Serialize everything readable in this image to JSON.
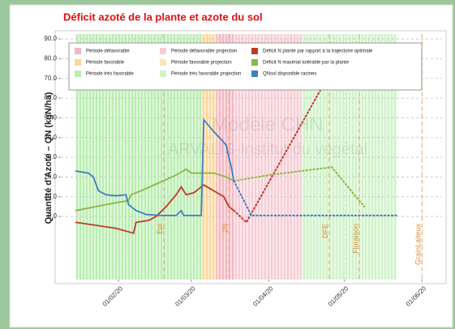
{
  "chart_data": {
    "type": "line",
    "title": "Déficit azoté de la plante et azote du sol",
    "ylabel": "Quantité d'Azote – QN (kgN/ha)",
    "watermark": [
      "Modèle CHN",
      "ARVALIS-Institut du végétal"
    ],
    "xlim": [
      "2020-01-09",
      "2020-06-09"
    ],
    "xticks": [
      {
        "value": "2020-02-01",
        "label": "01/02/20"
      },
      {
        "value": "2020-03-01",
        "label": "01/03/20"
      },
      {
        "value": "2020-04-01",
        "label": "01/04/20"
      },
      {
        "value": "2020-05-01",
        "label": "01/05/20"
      },
      {
        "value": "2020-06-01",
        "label": "01/06/20"
      }
    ],
    "ylim": [
      -32,
      92.5
    ],
    "yticks": [
      {
        "value": 0,
        "label": "0.0"
      },
      {
        "value": 10,
        "label": "10.0"
      },
      {
        "value": 20,
        "label": "20.0"
      },
      {
        "value": 30,
        "label": "30.0"
      },
      {
        "value": 40,
        "label": "40.0"
      },
      {
        "value": 50,
        "label": "50.0"
      },
      {
        "value": 60,
        "label": "60.0"
      },
      {
        "value": 70,
        "label": "70.0"
      },
      {
        "value": 80,
        "label": "80.0"
      },
      {
        "value": 90,
        "label": "90.0"
      }
    ],
    "grid": true,
    "band_types": [
      {
        "name": "Période défavorable",
        "color": "#f4b6c2"
      },
      {
        "name": "Période favorable",
        "color": "#fbd79a"
      },
      {
        "name": "Période très favorable",
        "color": "#b9eeb0"
      },
      {
        "name": "Période défavorable projection",
        "color": "#f7cdd5"
      },
      {
        "name": "Période favorable projection",
        "color": "#fce4b9"
      },
      {
        "name": "Période très favorable projection",
        "color": "#cff3c8"
      }
    ],
    "bands": [
      {
        "type": 2,
        "start": "2020-01-15",
        "end": "2020-03-05"
      },
      {
        "type": 1,
        "start": "2020-03-05",
        "end": "2020-03-11"
      },
      {
        "type": 0,
        "start": "2020-03-11",
        "end": "2020-03-18"
      },
      {
        "type": 3,
        "start": "2020-03-18",
        "end": "2020-04-14"
      },
      {
        "type": 5,
        "start": "2020-04-14",
        "end": "2020-05-22"
      }
    ],
    "series": [
      {
        "name": "Déficit N plante par rapport à la trajectoire optimale",
        "color": "#c0392b",
        "x": [
          "2020-01-15",
          "2020-01-31",
          "2020-02-07",
          "2020-02-08",
          "2020-02-13",
          "2020-02-16",
          "2020-02-20",
          "2020-02-24",
          "2020-02-26",
          "2020-02-28",
          "2020-03-02",
          "2020-03-06",
          "2020-03-10",
          "2020-03-14",
          "2020-03-16",
          "2020-03-18"
        ],
        "values": [
          -3,
          -6,
          -8.5,
          -3,
          -2,
          0,
          5,
          11,
          15,
          11,
          12,
          16,
          13,
          10,
          5,
          3
        ],
        "projection_x": [
          "2020-03-18",
          "2020-03-23",
          "2020-04-25"
        ],
        "projection_values": [
          3,
          -3,
          72
        ]
      },
      {
        "name": "Déficit N maximal tolérable par la plante",
        "color": "#8db54a",
        "x": [
          "2020-01-15",
          "2020-01-31",
          "2020-02-05",
          "2020-02-06",
          "2020-02-10",
          "2020-02-17",
          "2020-02-24",
          "2020-02-28",
          "2020-03-01",
          "2020-03-10",
          "2020-03-15",
          "2020-03-18"
        ],
        "values": [
          3,
          7,
          8,
          11,
          13,
          17,
          21,
          24,
          22,
          22,
          20,
          18
        ],
        "projection_x": [
          "2020-03-18",
          "2020-04-01",
          "2020-04-26",
          "2020-05-09"
        ],
        "projection_values": [
          18,
          21,
          25,
          5
        ]
      },
      {
        "name": "QNsol disponible racines",
        "color": "#3f7fc0",
        "x": [
          "2020-01-15",
          "2020-01-20",
          "2020-01-22",
          "2020-01-24",
          "2020-01-27",
          "2020-01-31",
          "2020-02-04",
          "2020-02-05",
          "2020-02-08",
          "2020-02-12",
          "2020-02-18",
          "2020-02-24",
          "2020-02-26",
          "2020-02-27",
          "2020-03-05",
          "2020-03-06",
          "2020-03-10",
          "2020-03-13",
          "2020-03-15",
          "2020-03-16",
          "2020-03-17",
          "2020-03-18"
        ],
        "values": [
          23,
          22,
          20,
          13,
          11,
          10.5,
          11,
          6,
          3,
          1,
          0.5,
          0.5,
          3,
          0.5,
          0.5,
          49,
          43,
          39,
          36,
          30,
          25,
          18
        ],
        "projection_x": [
          "2020-03-18",
          "2020-03-25",
          "2020-05-22"
        ],
        "projection_values": [
          18,
          0.5,
          0.5
        ]
      }
    ],
    "markers": [
      {
        "label": "Epi",
        "x": "2020-02-19"
      },
      {
        "label": "2N",
        "x": "2020-03-16"
      },
      {
        "label": "DFE",
        "x": "2020-04-25"
      },
      {
        "label": "Floraison",
        "x": "2020-05-07"
      },
      {
        "label": "GrainLaiteux",
        "x": "2020-06-01"
      }
    ]
  }
}
